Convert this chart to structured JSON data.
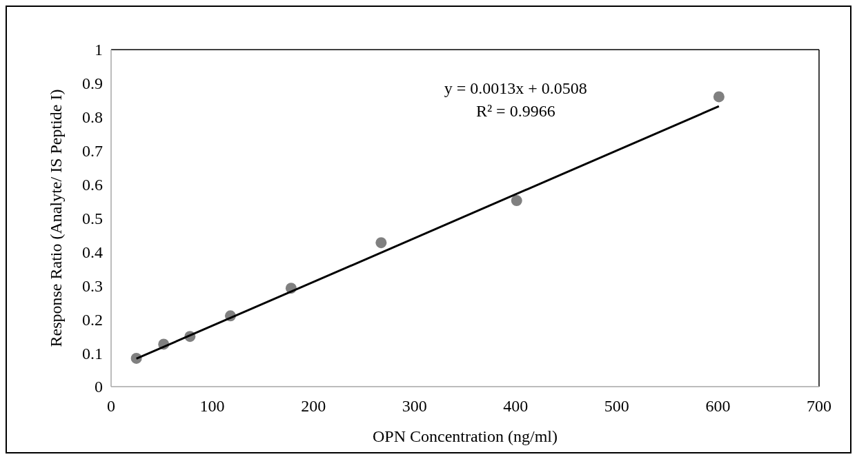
{
  "chart_data": {
    "type": "scatter",
    "xlabel": "OPN Concentration (ng/ml)",
    "ylabel": "Response Ratio (Analyte/ IS Peptide I)",
    "x": [
      25,
      52,
      78,
      118,
      178,
      267,
      401,
      601
    ],
    "series": [
      {
        "color": "#808080",
        "marker": "circle",
        "values": [
          0.084,
          0.126,
          0.149,
          0.21,
          0.292,
          0.427,
          0.552,
          0.86
        ]
      },
      {
        "type": "line",
        "color": "#000000",
        "marker": "none",
        "x": [
          25,
          601
        ],
        "values": [
          0.083,
          0.832
        ]
      }
    ],
    "annotations": [
      "y = 0.0013x + 0.0508",
      "R² = 0.9966"
    ],
    "xlim": [
      0,
      700
    ],
    "xticks": [
      0,
      100,
      200,
      300,
      400,
      500,
      600,
      700
    ],
    "ylim": [
      0,
      1
    ],
    "yticks": [
      0,
      0.1,
      0.2,
      0.3,
      0.4,
      0.5,
      0.6,
      0.7,
      0.8,
      0.9,
      1
    ],
    "grid": false,
    "line_style": "solid"
  }
}
